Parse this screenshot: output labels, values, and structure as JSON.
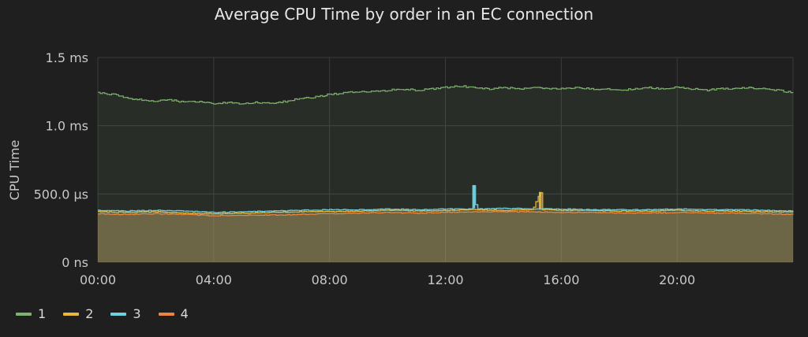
{
  "chart_data": {
    "type": "line",
    "title": "Average CPU Time by order in an EC connection",
    "ylabel": "CPU Time",
    "xlabel": "",
    "x_ticks": [
      "00:00",
      "04:00",
      "08:00",
      "12:00",
      "16:00",
      "20:00"
    ],
    "y_ticks": [
      "0 ns",
      "500.0 µs",
      "1.0 ms",
      "1.5 ms"
    ],
    "ylim_ms": [
      0,
      1.5
    ],
    "xlim_hours": [
      0,
      24
    ],
    "grid": true,
    "legend_position": "bottom-left",
    "series": [
      {
        "name": "1",
        "color": "#7eb26d",
        "x_hours": [
          0,
          0.5,
          1,
          1.5,
          2,
          2.5,
          3,
          3.5,
          4,
          4.5,
          5,
          5.5,
          6,
          6.5,
          7,
          7.5,
          8,
          8.5,
          9,
          9.5,
          10,
          10.5,
          11,
          11.5,
          12,
          12.5,
          13,
          13.5,
          14,
          14.5,
          15,
          15.5,
          16,
          16.5,
          17,
          17.5,
          18,
          18.5,
          19,
          19.5,
          20,
          20.5,
          21,
          21.5,
          22,
          22.5,
          23,
          23.5,
          24
        ],
        "values_ms": [
          1.24,
          1.23,
          1.2,
          1.19,
          1.18,
          1.19,
          1.17,
          1.18,
          1.16,
          1.17,
          1.16,
          1.17,
          1.16,
          1.18,
          1.2,
          1.21,
          1.23,
          1.24,
          1.25,
          1.25,
          1.26,
          1.27,
          1.26,
          1.27,
          1.28,
          1.29,
          1.28,
          1.27,
          1.28,
          1.27,
          1.28,
          1.27,
          1.27,
          1.28,
          1.27,
          1.27,
          1.26,
          1.27,
          1.28,
          1.27,
          1.28,
          1.27,
          1.26,
          1.27,
          1.27,
          1.28,
          1.27,
          1.26,
          1.24
        ]
      },
      {
        "name": "2",
        "color": "#eab839",
        "x_hours": [
          0,
          1,
          2,
          3,
          4,
          5,
          6,
          7,
          8,
          9,
          10,
          11,
          12,
          13,
          14,
          15,
          15.25,
          15.3,
          15.35,
          16,
          17,
          18,
          19,
          20,
          21,
          22,
          23,
          24
        ],
        "values_ms": [
          0.37,
          0.365,
          0.37,
          0.36,
          0.355,
          0.36,
          0.365,
          0.37,
          0.37,
          0.375,
          0.38,
          0.375,
          0.38,
          0.385,
          0.38,
          0.385,
          0.51,
          0.51,
          0.385,
          0.38,
          0.38,
          0.375,
          0.375,
          0.38,
          0.375,
          0.375,
          0.37,
          0.37
        ]
      },
      {
        "name": "3",
        "color": "#6ed0e0",
        "x_hours": [
          0,
          1,
          2,
          3,
          4,
          5,
          6,
          7,
          8,
          9,
          10,
          11,
          12,
          12.9,
          12.95,
          13.0,
          13.05,
          14,
          15,
          16,
          17,
          18,
          19,
          20,
          21,
          22,
          23,
          24
        ],
        "values_ms": [
          0.38,
          0.375,
          0.38,
          0.375,
          0.365,
          0.37,
          0.375,
          0.38,
          0.385,
          0.385,
          0.39,
          0.385,
          0.39,
          0.39,
          0.56,
          0.56,
          0.39,
          0.395,
          0.39,
          0.39,
          0.385,
          0.385,
          0.385,
          0.39,
          0.385,
          0.385,
          0.38,
          0.375
        ]
      },
      {
        "name": "4",
        "color": "#ef843c",
        "x_hours": [
          0,
          1,
          2,
          3,
          4,
          5,
          6,
          7,
          8,
          9,
          10,
          11,
          12,
          13,
          14,
          15,
          16,
          17,
          18,
          19,
          20,
          21,
          22,
          23,
          24
        ],
        "values_ms": [
          0.355,
          0.35,
          0.355,
          0.35,
          0.34,
          0.345,
          0.345,
          0.35,
          0.355,
          0.36,
          0.365,
          0.36,
          0.365,
          0.37,
          0.37,
          0.37,
          0.365,
          0.365,
          0.36,
          0.36,
          0.365,
          0.36,
          0.36,
          0.355,
          0.35
        ]
      }
    ]
  },
  "legend": [
    {
      "label": "1",
      "color": "#7eb26d"
    },
    {
      "label": "2",
      "color": "#eab839"
    },
    {
      "label": "3",
      "color": "#6ed0e0"
    },
    {
      "label": "4",
      "color": "#ef843c"
    }
  ]
}
